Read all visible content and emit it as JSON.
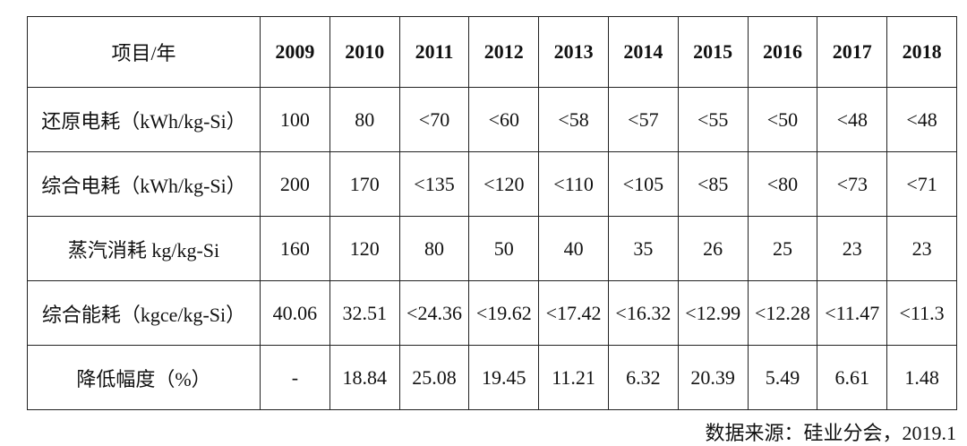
{
  "table": {
    "header": [
      "项目/年",
      "2009",
      "2010",
      "2011",
      "2012",
      "2013",
      "2014",
      "2015",
      "2016",
      "2017",
      "2018"
    ],
    "rows": [
      [
        "还原电耗（kWh/kg-Si）",
        "100",
        "80",
        "<70",
        "<60",
        "<58",
        "<57",
        "<55",
        "<50",
        "<48",
        "<48"
      ],
      [
        "综合电耗（kWh/kg-Si）",
        "200",
        "170",
        "<135",
        "<120",
        "<110",
        "<105",
        "<85",
        "<80",
        "<73",
        "<71"
      ],
      [
        "蒸汽消耗 kg/kg-Si",
        "160",
        "120",
        "80",
        "50",
        "40",
        "35",
        "26",
        "25",
        "23",
        "23"
      ],
      [
        "综合能耗（kgce/kg-Si）",
        "40.06",
        "32.51",
        "<24.36",
        "<19.62",
        "<17.42",
        "<16.32",
        "<12.99",
        "<12.28",
        "<11.47",
        "<11.3"
      ],
      [
        "降低幅度（%）",
        "-",
        "18.84",
        "25.08",
        "19.45",
        "11.21",
        "6.32",
        "20.39",
        "5.49",
        "6.61",
        "1.48"
      ]
    ]
  },
  "source": "数据来源：硅业分会，2019.1"
}
